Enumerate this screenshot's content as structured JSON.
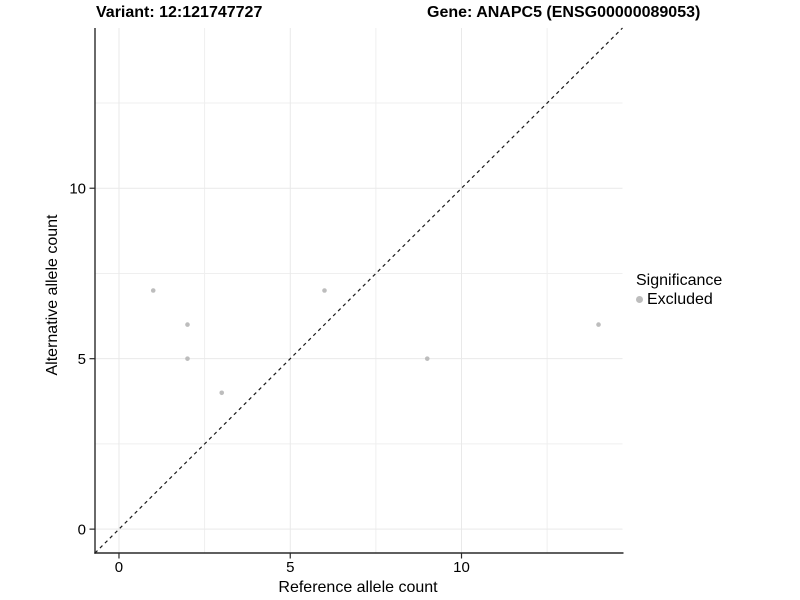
{
  "header": {
    "titles": [
      "Variant: 12:121747727",
      "Gene: ANAPC5 (ENSG00000089053)"
    ]
  },
  "legend": {
    "title": "Significance",
    "items": [
      {
        "label": "Excluded",
        "color": "#bdbdbd"
      }
    ]
  },
  "chart_data": {
    "type": "scatter",
    "titles": [
      "Variant: 12:121747727",
      "Gene: ANAPC5 (ENSG00000089053)"
    ],
    "xlabel": "Reference allele count",
    "ylabel": "Alternative allele count",
    "xlim": [
      -0.7,
      14.7
    ],
    "ylim": [
      -0.7,
      14.7
    ],
    "x_ticks": [
      0,
      5,
      10
    ],
    "y_ticks": [
      0,
      5,
      10
    ],
    "minor_gridlines": [
      2.5,
      7.5,
      12.5
    ],
    "grid": "on",
    "legend_position": "right",
    "series": [
      {
        "name": "Excluded",
        "color": "#bdbdbd",
        "points": [
          [
            1,
            7
          ],
          [
            2,
            6
          ],
          [
            2,
            5
          ],
          [
            3,
            4
          ],
          [
            6,
            7
          ],
          [
            9,
            5
          ],
          [
            14,
            6
          ]
        ]
      }
    ],
    "reference_line": {
      "type": "identity y=x",
      "style": "dashed",
      "color": "#1a1a1a"
    }
  },
  "colors": {
    "background": "#ffffff",
    "point": "#bdbdbd",
    "grid_major": "#e9e9e9",
    "grid_minor": "#efefef",
    "axis_line": "#2a2a2a",
    "tick_text": "#000000"
  }
}
